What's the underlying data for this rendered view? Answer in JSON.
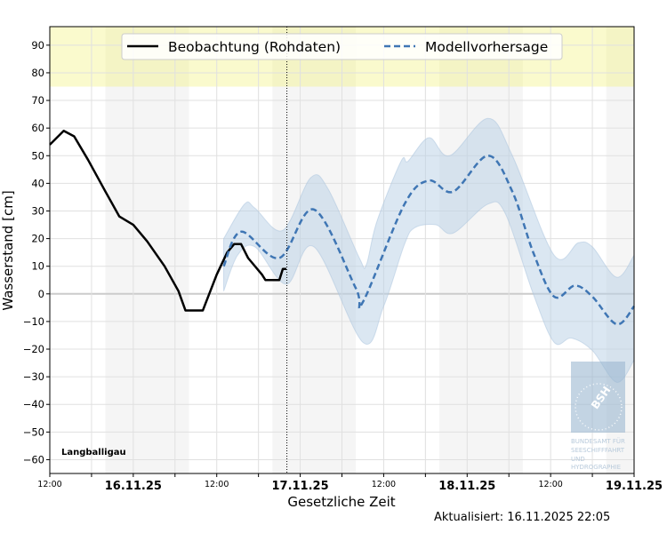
{
  "chart_data": {
    "type": "line",
    "station": "Langballigau",
    "xlabel": "Gesetzliche Zeit",
    "ylabel": "Wasserstand [cm]",
    "updated": "Aktualisiert: 16.11.2025 22:05",
    "xlim": [
      "2025-11-15T12:00",
      "2025-11-19T00:00"
    ],
    "ylim": [
      -65,
      96.7
    ],
    "yticks": [
      -60,
      -50,
      -40,
      -30,
      -20,
      -10,
      0,
      10,
      20,
      30,
      40,
      50,
      60,
      70,
      80,
      90
    ],
    "xticks": [
      {
        "t": "2025-11-15T12:00",
        "label": "12:00",
        "major": false
      },
      {
        "t": "2025-11-16T00:00",
        "label": "16.11.25",
        "major": true
      },
      {
        "t": "2025-11-16T12:00",
        "label": "12:00",
        "major": false
      },
      {
        "t": "2025-11-17T00:00",
        "label": "17.11.25",
        "major": true
      },
      {
        "t": "2025-11-17T12:00",
        "label": "12:00",
        "major": false
      },
      {
        "t": "2025-11-18T00:00",
        "label": "18.11.25",
        "major": true
      },
      {
        "t": "2025-11-18T12:00",
        "label": "12:00",
        "major": false
      },
      {
        "t": "2025-11-19T00:00",
        "label": "19.11.25",
        "major": true
      }
    ],
    "grid": true,
    "warning_zone_from": 75,
    "warning_color": "#fafacd",
    "night_periods": [
      [
        "2025-11-15T20:00",
        "2025-11-16T08:00"
      ],
      [
        "2025-11-16T20:00",
        "2025-11-17T08:00"
      ],
      [
        "2025-11-17T20:00",
        "2025-11-18T08:00"
      ],
      [
        "2025-11-18T20:00",
        "2025-11-19T00:00"
      ]
    ],
    "now_marker": "2025-11-16T22:05",
    "legend_placement": "top-center",
    "series": [
      {
        "name": "Beobachtung (Rohdaten)",
        "color": "#000000",
        "style": "solid",
        "points": [
          [
            "2025-11-15T12:00",
            54
          ],
          [
            "2025-11-15T14:00",
            59
          ],
          [
            "2025-11-15T15:30",
            57
          ],
          [
            "2025-11-15T17:30",
            48.5
          ],
          [
            "2025-11-15T20:00",
            37
          ],
          [
            "2025-11-15T22:00",
            28
          ],
          [
            "2025-11-16T00:00",
            25
          ],
          [
            "2025-11-16T02:00",
            19
          ],
          [
            "2025-11-16T04:30",
            10
          ],
          [
            "2025-11-16T06:30",
            1
          ],
          [
            "2025-11-16T07:30",
            -6
          ],
          [
            "2025-11-16T10:00",
            -6
          ],
          [
            "2025-11-16T12:00",
            7
          ],
          [
            "2025-11-16T13:30",
            15
          ],
          [
            "2025-11-16T14:30",
            18
          ],
          [
            "2025-11-16T15:30",
            18
          ],
          [
            "2025-11-16T16:30",
            13
          ],
          [
            "2025-11-16T18:30",
            7
          ],
          [
            "2025-11-16T19:00",
            5
          ],
          [
            "2025-11-16T21:00",
            5
          ],
          [
            "2025-11-16T21:30",
            9
          ],
          [
            "2025-11-16T22:00",
            9
          ]
        ]
      },
      {
        "name": "Modellvorhersage",
        "color": "#3f76b4",
        "style": "dashed",
        "points": [
          [
            "2025-11-16T13:00",
            10
          ],
          [
            "2025-11-16T15:30",
            22.5
          ],
          [
            "2025-11-16T21:00",
            13
          ],
          [
            "2025-11-17T02:00",
            30.5
          ],
          [
            "2025-11-17T08:00",
            2
          ],
          [
            "2025-11-17T09:00",
            -3
          ],
          [
            "2025-11-17T15:00",
            32.5
          ],
          [
            "2025-11-17T18:30",
            41
          ],
          [
            "2025-11-17T22:00",
            37
          ],
          [
            "2025-11-18T03:00",
            50
          ],
          [
            "2025-11-18T06:30",
            37
          ],
          [
            "2025-11-18T09:30",
            15
          ],
          [
            "2025-11-18T12:30",
            -1
          ],
          [
            "2025-11-18T15:30",
            3
          ],
          [
            "2025-11-18T18:00",
            -1
          ],
          [
            "2025-11-18T21:30",
            -11
          ],
          [
            "2025-11-19T00:00",
            -4.5
          ]
        ]
      }
    ],
    "forecast_band": {
      "color": "#b8d0e6",
      "upper": [
        [
          "2025-11-16T13:00",
          20
        ],
        [
          "2025-11-16T16:00",
          32.5
        ],
        [
          "2025-11-16T17:30",
          31
        ],
        [
          "2025-11-16T21:30",
          23
        ],
        [
          "2025-11-17T01:30",
          42
        ],
        [
          "2025-11-17T04:00",
          38
        ],
        [
          "2025-11-17T08:30",
          13
        ],
        [
          "2025-11-17T09:30",
          10.5
        ],
        [
          "2025-11-17T11:00",
          26
        ],
        [
          "2025-11-17T14:30",
          48
        ],
        [
          "2025-11-17T15:30",
          48
        ],
        [
          "2025-11-17T18:30",
          56.5
        ],
        [
          "2025-11-17T21:30",
          50
        ],
        [
          "2025-11-18T03:00",
          63.5
        ],
        [
          "2025-11-18T06:30",
          50
        ],
        [
          "2025-11-18T12:30",
          14
        ],
        [
          "2025-11-18T16:00",
          18.5
        ],
        [
          "2025-11-18T18:00",
          17
        ],
        [
          "2025-11-18T21:30",
          6
        ],
        [
          "2025-11-19T00:00",
          14
        ]
      ],
      "lower": [
        [
          "2025-11-16T13:00",
          1
        ],
        [
          "2025-11-16T15:00",
          14
        ],
        [
          "2025-11-16T17:30",
          17
        ],
        [
          "2025-11-16T22:00",
          3.5
        ],
        [
          "2025-11-17T02:00",
          17
        ],
        [
          "2025-11-17T09:00",
          -17.5
        ],
        [
          "2025-11-17T12:00",
          -4.5
        ],
        [
          "2025-11-17T15:00",
          18
        ],
        [
          "2025-11-17T16:30",
          24
        ],
        [
          "2025-11-17T19:30",
          25
        ],
        [
          "2025-11-17T22:00",
          22
        ],
        [
          "2025-11-18T03:00",
          32.5
        ],
        [
          "2025-11-18T05:30",
          29
        ],
        [
          "2025-11-18T09:30",
          0
        ],
        [
          "2025-11-18T12:30",
          -17.5
        ],
        [
          "2025-11-18T15:00",
          -16
        ],
        [
          "2025-11-18T18:00",
          -20.5
        ],
        [
          "2025-11-18T21:30",
          -32
        ],
        [
          "2025-11-19T00:00",
          -24
        ]
      ]
    }
  },
  "logo": {
    "abbr": "BSH",
    "lines": [
      "BUNDESAMT FÜR",
      "SEESCHIFFFAHRT",
      "UND",
      "HYDROGRAPHIE"
    ]
  }
}
